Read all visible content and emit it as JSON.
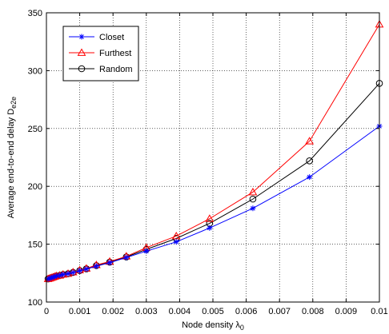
{
  "chart_data": {
    "type": "line",
    "title": "",
    "xlabel": "Node density λ₀",
    "xlabel_parts": {
      "base": "Node density λ",
      "sub": "0"
    },
    "ylabel": "Average end-to-end delay D_e2e",
    "ylabel_parts": {
      "base": "Average end-to-end delay D",
      "sub": "e2e"
    },
    "xlim": [
      0,
      0.01
    ],
    "ylim": [
      100,
      350
    ],
    "xticks": [
      0,
      0.001,
      0.002,
      0.003,
      0.004,
      0.005,
      0.006,
      0.007,
      0.008,
      0.009,
      0.01
    ],
    "xtick_labels": [
      "0",
      "0.001",
      "0.002",
      "0.003",
      "0.004",
      "0.005",
      "0.006",
      "0.007",
      "0.008",
      "0.009",
      "0.01"
    ],
    "yticks": [
      100,
      150,
      200,
      250,
      300,
      350
    ],
    "ytick_labels": [
      "100",
      "150",
      "200",
      "250",
      "300",
      "350"
    ],
    "grid": true,
    "legend_position": "top-left",
    "x": [
      5e-05,
      0.0001,
      0.00015,
      0.0002,
      0.00025,
      0.0003,
      0.0004,
      0.0005,
      0.00065,
      0.0008,
      0.001,
      0.0012,
      0.0015,
      0.0019,
      0.0024,
      0.003,
      0.0039,
      0.0049,
      0.0062,
      0.0079,
      0.01
    ],
    "series": [
      {
        "name": "Closet",
        "color": "#0000ff",
        "marker": "asterisk",
        "values": [
          120,
          120.5,
          121,
          121.5,
          122,
          122.5,
          123,
          123.8,
          124.5,
          125.5,
          127,
          128.5,
          131,
          134,
          138.5,
          144,
          152,
          164,
          181,
          208,
          252
        ]
      },
      {
        "name": "Furthest",
        "color": "#ff0000",
        "marker": "triangle",
        "values": [
          120,
          120.5,
          121,
          121.5,
          122,
          122.5,
          123,
          123.8,
          124.5,
          125.8,
          127.5,
          129,
          132,
          135,
          139.5,
          147,
          157,
          172,
          195,
          239,
          340
        ]
      },
      {
        "name": "Random",
        "color": "#000000",
        "marker": "circle",
        "values": [
          120,
          120.5,
          121,
          121.5,
          122,
          122.5,
          123,
          123.8,
          124.5,
          125.6,
          127.2,
          128.7,
          131.5,
          134.5,
          139,
          145.5,
          155,
          168,
          189,
          222,
          289
        ]
      }
    ]
  }
}
